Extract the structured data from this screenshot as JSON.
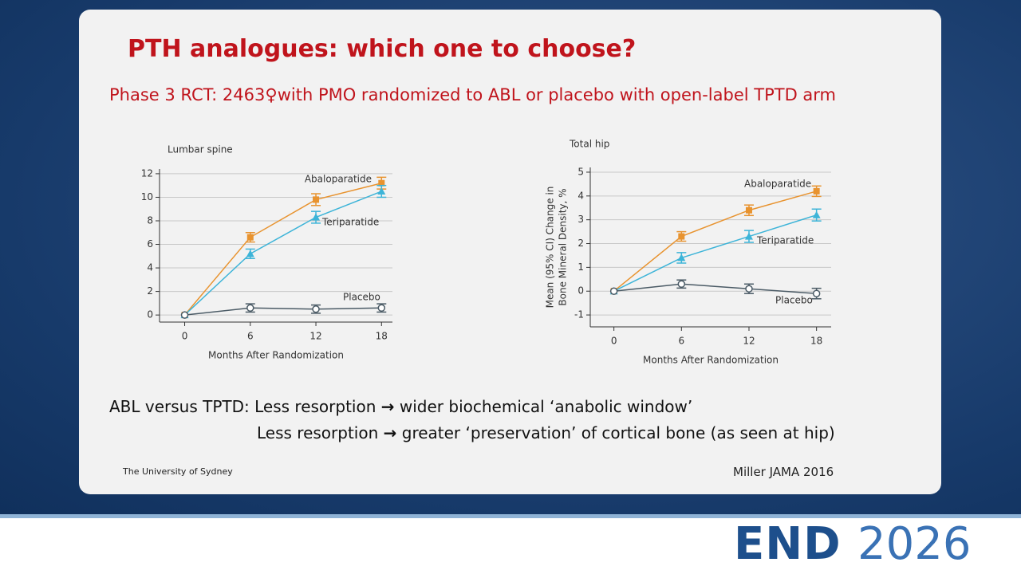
{
  "slide": {
    "title": "PTH analogues: which one to choose?",
    "subtitle": "Phase 3 RCT: 2463♀with PMO randomized to ABL or placebo with open-label TPTD arm",
    "bullets": [
      {
        "lead": "ABL versus TPTD: Less resorption",
        "arrow": "→",
        "rest": "wider biochemical ‘anabolic window’"
      },
      {
        "lead": "Less resorption",
        "arrow": "→",
        "rest": "greater ‘preservation’ of cortical bone (as seen at hip)"
      }
    ],
    "footer_left": "The University of Sydney",
    "footer_right": "Miller JAMA 2016",
    "logo": {
      "word": "END",
      "year": "2026"
    }
  },
  "chart_data": [
    {
      "type": "line",
      "title": "Lumbar spine",
      "xlabel": "Months After Randomization",
      "x": [
        0,
        6,
        12,
        18
      ],
      "xlim": [
        -2.3,
        19
      ],
      "xticks": [
        0,
        6,
        12,
        18
      ],
      "ylim": [
        -0.6,
        12.4
      ],
      "yticks": [
        0,
        2,
        4,
        6,
        8,
        10,
        12
      ],
      "grid": true,
      "series": [
        {
          "name": "Abaloparatide",
          "color": "#e8932f",
          "marker": "square",
          "values": [
            0,
            6.6,
            9.8,
            11.2
          ],
          "errors": [
            0,
            0.4,
            0.5,
            0.5
          ]
        },
        {
          "name": "Teriparatide",
          "color": "#3db4d8",
          "marker": "triangle",
          "values": [
            0,
            5.2,
            8.3,
            10.5
          ],
          "errors": [
            0,
            0.4,
            0.5,
            0.5
          ]
        },
        {
          "name": "Placebo",
          "color": "#4b5b66",
          "marker": "circle",
          "values": [
            0,
            0.6,
            0.5,
            0.6
          ],
          "errors": [
            0,
            0.35,
            0.35,
            0.35
          ]
        }
      ]
    },
    {
      "type": "line",
      "title": "Total hip",
      "xlabel": "Months After Randomization",
      "ylabel": [
        "Mean (95% CI) Change in",
        "Bone Mineral Density, %"
      ],
      "x": [
        0,
        6,
        12,
        18
      ],
      "xlim": [
        -2.1,
        19.3
      ],
      "xticks": [
        0,
        6,
        12,
        18
      ],
      "ylim": [
        -1.5,
        5.2
      ],
      "yticks": [
        -1,
        0,
        1,
        2,
        3,
        4,
        5
      ],
      "grid": true,
      "series": [
        {
          "name": "Abaloparatide",
          "color": "#e8932f",
          "marker": "square",
          "values": [
            0,
            2.3,
            3.4,
            4.2
          ],
          "errors": [
            0,
            0.2,
            0.22,
            0.22
          ]
        },
        {
          "name": "Teriparatide",
          "color": "#3db4d8",
          "marker": "triangle",
          "values": [
            0,
            1.4,
            2.3,
            3.2
          ],
          "errors": [
            0,
            0.22,
            0.25,
            0.25
          ]
        },
        {
          "name": "Placebo",
          "color": "#4b5b66",
          "marker": "circle",
          "values": [
            0,
            0.3,
            0.1,
            -0.1
          ],
          "errors": [
            0,
            0.17,
            0.2,
            0.22
          ]
        }
      ]
    }
  ]
}
